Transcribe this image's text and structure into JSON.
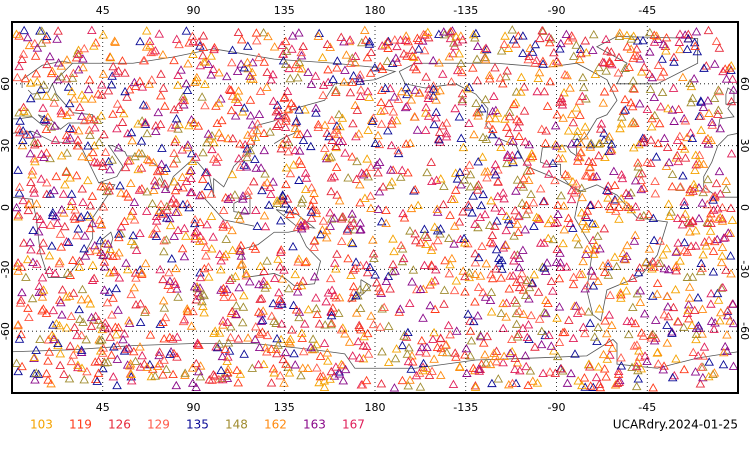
{
  "map": {
    "title": "UCARdry.2024-01-25",
    "lonlim": [
      0,
      360
    ],
    "latlim": [
      -90,
      90
    ],
    "lonticks": [
      45,
      90,
      135,
      180,
      {
        "value": 225,
        "label": "-135"
      },
      {
        "value": 270,
        "label": "-90"
      },
      {
        "value": 315,
        "label": "-45"
      }
    ],
    "latticks": [
      -60,
      -30,
      0,
      30,
      60
    ],
    "grid": true,
    "legend": [
      {
        "label": 103,
        "color": "#f5a300"
      },
      {
        "label": 119,
        "color": "#ff3a1a"
      },
      {
        "label": 126,
        "color": "#e6283a"
      },
      {
        "label": 129,
        "color": "#ff5a4a"
      },
      {
        "label": 135,
        "color": "#0a0a96"
      },
      {
        "label": 148,
        "color": "#a08c30"
      },
      {
        "label": 162,
        "color": "#ff8a10"
      },
      {
        "label": 163,
        "color": "#8a0a8a"
      },
      {
        "label": 167,
        "color": "#e0205a"
      }
    ]
  }
}
